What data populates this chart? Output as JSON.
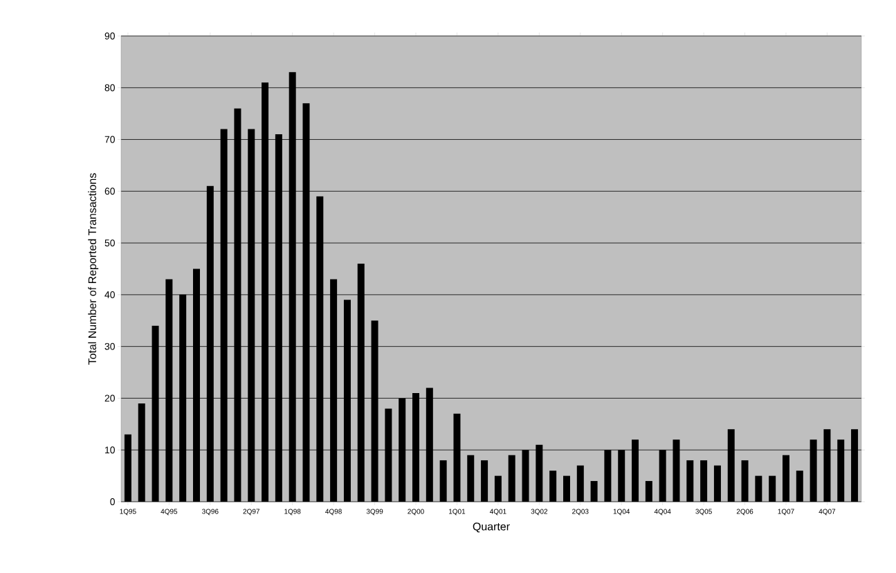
{
  "chart_data": {
    "type": "bar",
    "xlabel": "Quarter",
    "ylabel": "Total Number of Reported Transactions",
    "categories": [
      "1Q95",
      null,
      null,
      "4Q95",
      null,
      null,
      "3Q96",
      null,
      null,
      "2Q97",
      null,
      null,
      "1Q98",
      null,
      null,
      "4Q98",
      null,
      null,
      "3Q99",
      null,
      null,
      "2Q00",
      null,
      null,
      "1Q01",
      null,
      null,
      "4Q01",
      null,
      null,
      "3Q02",
      null,
      null,
      "2Q03",
      null,
      null,
      "1Q04",
      null,
      null,
      "4Q04",
      null,
      null,
      "3Q05",
      null,
      null,
      "2Q06",
      null,
      null,
      "1Q07",
      null,
      null,
      "4Q07",
      null,
      null
    ],
    "values": [
      13,
      19,
      34,
      43,
      40,
      45,
      61,
      72,
      76,
      72,
      81,
      71,
      83,
      77,
      59,
      43,
      39,
      46,
      35,
      18,
      20,
      21,
      22,
      8,
      17,
      9,
      8,
      5,
      9,
      10,
      11,
      6,
      5,
      7,
      4,
      10,
      10,
      12,
      4,
      10,
      12,
      8,
      8,
      7,
      14,
      8,
      5,
      5,
      9,
      6,
      12,
      14,
      12,
      14
    ],
    "color": "#000000",
    "ylim": [
      0,
      90
    ],
    "yticks": [
      0,
      10,
      20,
      30,
      40,
      50,
      60,
      70,
      80,
      90
    ],
    "grid": "y"
  }
}
